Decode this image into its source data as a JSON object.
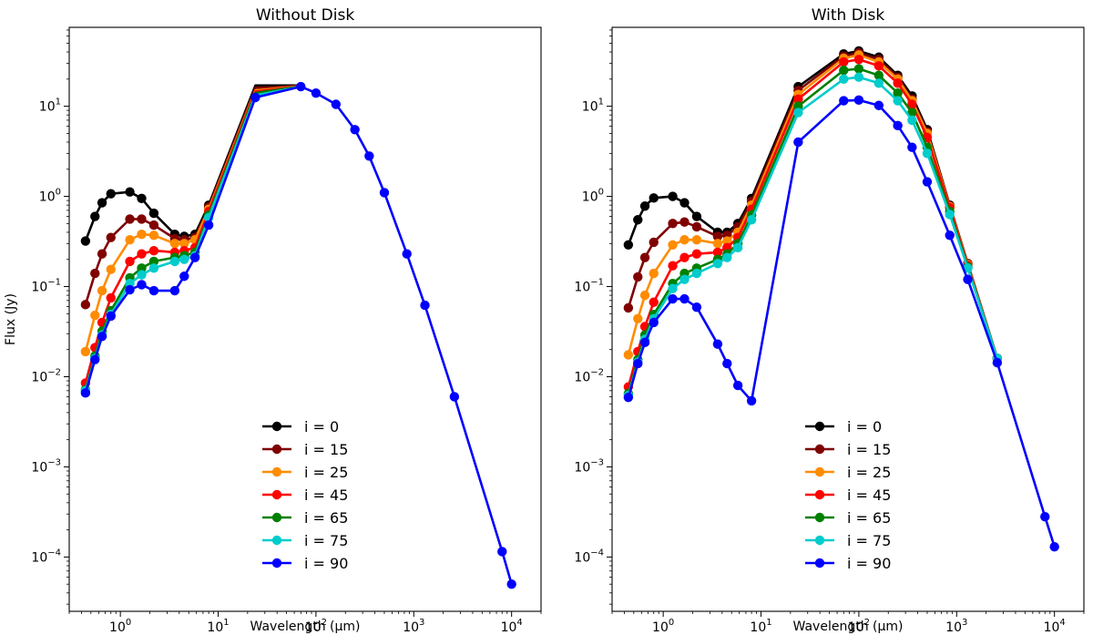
{
  "chart_data": [
    {
      "type": "line",
      "title": "Without Disk",
      "xlabel": "Wavelength (μm)",
      "ylabel": "Flux (Jy)",
      "xscale": "log",
      "yscale": "log",
      "xlim": [
        0.3,
        20000
      ],
      "ylim": [
        2.5e-05,
        75
      ],
      "x_ticks": [
        {
          "value": 1,
          "base": "10",
          "exp": "0"
        },
        {
          "value": 10,
          "base": "10",
          "exp": "1"
        },
        {
          "value": 100,
          "base": "10",
          "exp": "2"
        },
        {
          "value": 1000,
          "base": "10",
          "exp": "3"
        },
        {
          "value": 10000,
          "base": "10",
          "exp": "4"
        }
      ],
      "y_ticks": [
        {
          "value": 0.0001,
          "base": "10",
          "exp": "−4"
        },
        {
          "value": 0.001,
          "base": "10",
          "exp": "−3"
        },
        {
          "value": 0.01,
          "base": "10",
          "exp": "−2"
        },
        {
          "value": 0.1,
          "base": "10",
          "exp": "−1"
        },
        {
          "value": 1,
          "base": "10",
          "exp": "0"
        },
        {
          "value": 10,
          "base": "10",
          "exp": "1"
        }
      ],
      "grid": false,
      "legend_position": "lower-center",
      "series": [
        {
          "name": "i = 0",
          "color": "#000000",
          "x": [
            0.44,
            0.55,
            0.65,
            0.8,
            1.25,
            1.65,
            2.2,
            3.6,
            4.5,
            5.8,
            8.0
          ],
          "y": [
            0.32,
            0.6,
            0.85,
            1.07,
            1.12,
            0.95,
            0.65,
            0.38,
            0.36,
            0.38,
            0.8
          ]
        },
        {
          "name": "i = 15",
          "color": "#800000",
          "x": [
            0.44,
            0.55,
            0.65,
            0.8,
            1.25,
            1.65,
            2.2,
            3.6,
            4.5,
            5.8,
            8.0
          ],
          "y": [
            0.063,
            0.14,
            0.23,
            0.35,
            0.56,
            0.56,
            0.48,
            0.34,
            0.33,
            0.35,
            0.76
          ]
        },
        {
          "name": "i = 25",
          "color": "#ff8c00",
          "x": [
            0.44,
            0.55,
            0.65,
            0.8,
            1.25,
            1.65,
            2.2,
            3.6,
            4.5,
            5.8,
            8.0
          ],
          "y": [
            0.019,
            0.048,
            0.09,
            0.155,
            0.33,
            0.38,
            0.37,
            0.3,
            0.3,
            0.33,
            0.72
          ]
        },
        {
          "name": "i = 45",
          "color": "#ff0000",
          "x": [
            0.44,
            0.55,
            0.65,
            0.8,
            1.25,
            1.65,
            2.2,
            3.6,
            4.5,
            5.8,
            8.0
          ],
          "y": [
            0.0085,
            0.021,
            0.04,
            0.075,
            0.19,
            0.23,
            0.25,
            0.24,
            0.25,
            0.27,
            0.68
          ]
        },
        {
          "name": "i = 65",
          "color": "#008000",
          "x": [
            0.44,
            0.55,
            0.65,
            0.8,
            1.25,
            1.65,
            2.2,
            3.6,
            4.5,
            5.8,
            8.0
          ],
          "y": [
            0.0072,
            0.017,
            0.032,
            0.054,
            0.125,
            0.16,
            0.19,
            0.21,
            0.22,
            0.24,
            0.62
          ]
        },
        {
          "name": "i = 75",
          "color": "#00cccc",
          "x": [
            0.44,
            0.55,
            0.65,
            0.8,
            1.25,
            1.65,
            2.2,
            3.6,
            4.5,
            5.8,
            8.0
          ],
          "y": [
            0.007,
            0.016,
            0.029,
            0.049,
            0.108,
            0.135,
            0.16,
            0.19,
            0.2,
            0.22,
            0.58
          ]
        },
        {
          "name": "i = 90",
          "color": "#0000ff",
          "x": [
            0.44,
            0.55,
            0.65,
            0.8,
            1.25,
            1.65,
            2.2,
            3.6,
            4.5,
            5.8,
            8.0,
            24,
            70,
            100,
            160,
            250,
            350,
            500,
            850,
            1300,
            2600,
            8000,
            10000
          ],
          "y": [
            0.0066,
            0.0155,
            0.028,
            0.047,
            0.092,
            0.105,
            0.09,
            0.09,
            0.13,
            0.21,
            0.48,
            12.5,
            16.5,
            14.0,
            10.5,
            5.5,
            2.8,
            1.1,
            0.23,
            0.062,
            0.006,
            0.000115,
            5e-05
          ]
        }
      ],
      "shared_tail": {
        "x": [
          24,
          70
        ],
        "series_y": {
          "i = 0": [
            17.0,
            17.0
          ],
          "i = 15": [
            16.0,
            16.8
          ],
          "i = 25": [
            15.0,
            16.7
          ],
          "i = 45": [
            14.5,
            16.6
          ],
          "i = 65": [
            14.0,
            16.6
          ],
          "i = 75": [
            13.2,
            16.5
          ]
        }
      }
    },
    {
      "type": "line",
      "title": "With Disk",
      "xlabel": "Wavelength (μm)",
      "ylabel": "",
      "xscale": "log",
      "yscale": "log",
      "xlim": [
        0.3,
        20000
      ],
      "ylim": [
        2.5e-05,
        75
      ],
      "x_ticks": [
        {
          "value": 1,
          "base": "10",
          "exp": "0"
        },
        {
          "value": 10,
          "base": "10",
          "exp": "1"
        },
        {
          "value": 100,
          "base": "10",
          "exp": "2"
        },
        {
          "value": 1000,
          "base": "10",
          "exp": "3"
        },
        {
          "value": 10000,
          "base": "10",
          "exp": "4"
        }
      ],
      "y_ticks": [
        {
          "value": 0.0001,
          "base": "10",
          "exp": "−4"
        },
        {
          "value": 0.001,
          "base": "10",
          "exp": "−3"
        },
        {
          "value": 0.01,
          "base": "10",
          "exp": "−2"
        },
        {
          "value": 0.1,
          "base": "10",
          "exp": "−1"
        },
        {
          "value": 1,
          "base": "10",
          "exp": "0"
        },
        {
          "value": 10,
          "base": "10",
          "exp": "1"
        }
      ],
      "grid": false,
      "legend_position": "lower-center",
      "series": [
        {
          "name": "i = 0",
          "color": "#000000",
          "x": [
            0.44,
            0.55,
            0.65,
            0.8,
            1.25,
            1.65,
            2.2,
            3.6,
            4.5,
            5.8,
            8.0,
            24,
            70,
            100,
            160,
            250,
            350,
            500,
            850,
            1300,
            2600
          ],
          "y": [
            0.29,
            0.55,
            0.78,
            0.96,
            1.0,
            0.85,
            0.6,
            0.4,
            0.4,
            0.5,
            0.95,
            16.5,
            38,
            41,
            35,
            22,
            13,
            5.5,
            0.8,
            0.18,
            0.016
          ]
        },
        {
          "name": "i = 15",
          "color": "#800000",
          "x": [
            0.44,
            0.55,
            0.65,
            0.8,
            1.25,
            1.65,
            2.2,
            3.6,
            4.5,
            5.8,
            8.0,
            24,
            70,
            100,
            160,
            250,
            350,
            500,
            850,
            1300,
            2600
          ],
          "y": [
            0.058,
            0.128,
            0.21,
            0.31,
            0.5,
            0.52,
            0.46,
            0.36,
            0.37,
            0.46,
            0.88,
            15,
            36,
            39,
            33,
            21,
            12,
            5.2,
            0.78,
            0.18,
            0.016
          ]
        },
        {
          "name": "i = 25",
          "color": "#ff8c00",
          "x": [
            0.44,
            0.55,
            0.65,
            0.8,
            1.25,
            1.65,
            2.2,
            3.6,
            4.5,
            5.8,
            8.0,
            24,
            70,
            100,
            160,
            250,
            350,
            500,
            850,
            1300,
            2600
          ],
          "y": [
            0.0175,
            0.044,
            0.08,
            0.14,
            0.29,
            0.33,
            0.33,
            0.3,
            0.32,
            0.4,
            0.8,
            13.5,
            34,
            37,
            31,
            20,
            11.5,
            5.0,
            0.77,
            0.175,
            0.016
          ]
        },
        {
          "name": "i = 45",
          "color": "#ff0000",
          "x": [
            0.44,
            0.55,
            0.65,
            0.8,
            1.25,
            1.65,
            2.2,
            3.6,
            4.5,
            5.8,
            8.0,
            24,
            70,
            100,
            160,
            250,
            350,
            500,
            850,
            1300,
            2600
          ],
          "y": [
            0.0077,
            0.019,
            0.036,
            0.067,
            0.17,
            0.21,
            0.23,
            0.24,
            0.27,
            0.35,
            0.72,
            12,
            31,
            33,
            28,
            18,
            10.5,
            4.5,
            0.75,
            0.17,
            0.016
          ]
        },
        {
          "name": "i = 65",
          "color": "#008000",
          "x": [
            0.44,
            0.55,
            0.65,
            0.8,
            1.25,
            1.65,
            2.2,
            3.6,
            4.5,
            5.8,
            8.0,
            24,
            70,
            100,
            160,
            250,
            350,
            500,
            850,
            1300,
            2600
          ],
          "y": [
            0.0065,
            0.0155,
            0.029,
            0.049,
            0.108,
            0.14,
            0.16,
            0.2,
            0.23,
            0.3,
            0.62,
            10,
            25,
            26,
            22,
            14,
            8.5,
            3.5,
            0.68,
            0.165,
            0.016
          ]
        },
        {
          "name": "i = 75",
          "color": "#00cccc",
          "x": [
            0.44,
            0.55,
            0.65,
            0.8,
            1.25,
            1.65,
            2.2,
            3.6,
            4.5,
            5.8,
            8.0,
            24,
            70,
            100,
            160,
            250,
            350,
            500,
            850,
            1300,
            2600
          ],
          "y": [
            0.0062,
            0.0145,
            0.026,
            0.044,
            0.095,
            0.12,
            0.14,
            0.18,
            0.21,
            0.27,
            0.55,
            8.5,
            20,
            21,
            18,
            11.5,
            7,
            3.0,
            0.63,
            0.16,
            0.016
          ]
        },
        {
          "name": "i = 90",
          "color": "#0000ff",
          "x": [
            0.44,
            0.55,
            0.65,
            0.8,
            1.25,
            1.65,
            2.2,
            3.6,
            4.5,
            5.8,
            8.0,
            24,
            70,
            100,
            160,
            250,
            350,
            500,
            850,
            1300,
            2600,
            8000,
            10000
          ],
          "y": [
            0.0059,
            0.014,
            0.024,
            0.04,
            0.073,
            0.073,
            0.059,
            0.023,
            0.014,
            0.008,
            0.0054,
            4.0,
            11.5,
            11.7,
            10.2,
            6.1,
            3.5,
            1.45,
            0.37,
            0.12,
            0.0143,
            0.00028,
            0.00013
          ]
        }
      ]
    }
  ]
}
